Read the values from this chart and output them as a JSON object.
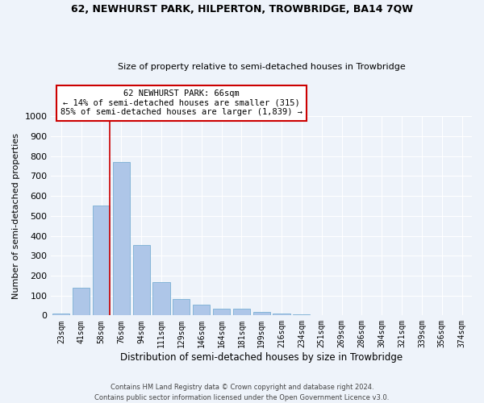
{
  "title1": "62, NEWHURST PARK, HILPERTON, TROWBRIDGE, BA14 7QW",
  "title2": "Size of property relative to semi-detached houses in Trowbridge",
  "xlabel": "Distribution of semi-detached houses by size in Trowbridge",
  "ylabel": "Number of semi-detached properties",
  "bin_labels": [
    "23sqm",
    "41sqm",
    "58sqm",
    "76sqm",
    "94sqm",
    "111sqm",
    "129sqm",
    "146sqm",
    "164sqm",
    "181sqm",
    "199sqm",
    "216sqm",
    "234sqm",
    "251sqm",
    "269sqm",
    "286sqm",
    "304sqm",
    "321sqm",
    "339sqm",
    "356sqm",
    "374sqm"
  ],
  "bar_heights": [
    8,
    140,
    550,
    770,
    355,
    168,
    82,
    55,
    35,
    35,
    17,
    10,
    7,
    0,
    0,
    0,
    0,
    0,
    0,
    0,
    0
  ],
  "bar_color": "#aec6e8",
  "bar_edge_color": "#7aafd4",
  "property_bin_index": 2,
  "annotation_title": "62 NEWHURST PARK: 66sqm",
  "annotation_line1": "← 14% of semi-detached houses are smaller (315)",
  "annotation_line2": "85% of semi-detached houses are larger (1,839) →",
  "vline_color": "#cc0000",
  "annotation_box_facecolor": "#ffffff",
  "annotation_box_edgecolor": "#cc0000",
  "ylim": [
    0,
    1000
  ],
  "yticks": [
    0,
    100,
    200,
    300,
    400,
    500,
    600,
    700,
    800,
    900,
    1000
  ],
  "footer1": "Contains HM Land Registry data © Crown copyright and database right 2024.",
  "footer2": "Contains public sector information licensed under the Open Government Licence v3.0.",
  "background_color": "#eef3fa",
  "grid_color": "#ffffff",
  "title1_fontsize": 9,
  "title2_fontsize": 8
}
